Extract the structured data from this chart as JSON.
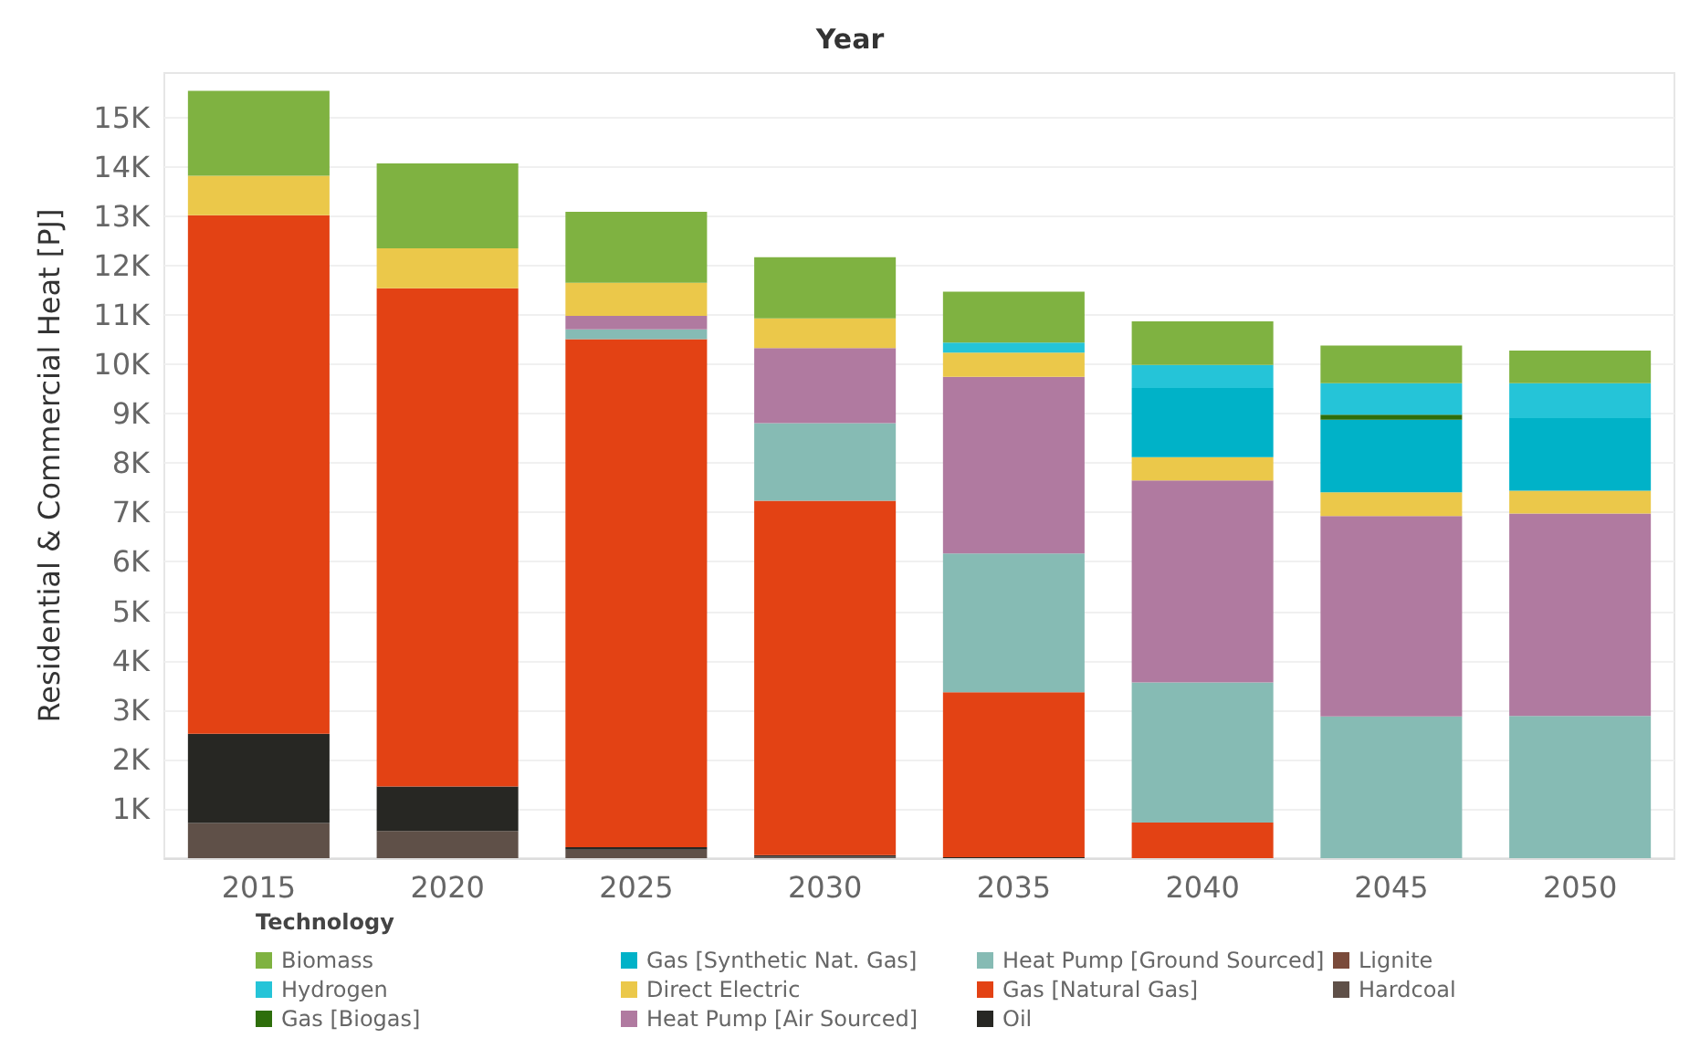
{
  "chart_data": {
    "type": "bar",
    "stacked": true,
    "xlabel": "Year",
    "ylabel": "Residential & Commercial Heat [PJ]",
    "legend_title": "Technology",
    "legend": "bottom",
    "grid": "y",
    "categories": [
      "2015",
      "2020",
      "2025",
      "2030",
      "2035",
      "2040",
      "2045",
      "2050"
    ],
    "ylim": [
      0,
      15900
    ],
    "yticks": [
      {
        "value": 1000,
        "label": "1K"
      },
      {
        "value": 2000,
        "label": "2K"
      },
      {
        "value": 3000,
        "label": "3K"
      },
      {
        "value": 4000,
        "label": "4K"
      },
      {
        "value": 5000,
        "label": "5K"
      },
      {
        "value": 6000,
        "label": "6K"
      },
      {
        "value": 7000,
        "label": "7K"
      },
      {
        "value": 8000,
        "label": "8K"
      },
      {
        "value": 9000,
        "label": "9K"
      },
      {
        "value": 10000,
        "label": "10K"
      },
      {
        "value": 11000,
        "label": "11K"
      },
      {
        "value": 12000,
        "label": "12K"
      },
      {
        "value": 13000,
        "label": "13K"
      },
      {
        "value": 14000,
        "label": "14K"
      },
      {
        "value": 15000,
        "label": "15K"
      }
    ],
    "series": [
      {
        "name": "Hardcoal",
        "color": "#5f5048",
        "values": [
          710,
          550,
          170,
          30,
          0,
          0,
          0,
          0
        ]
      },
      {
        "name": "Lignite",
        "color": "#7a4a3a",
        "values": [
          0,
          0,
          0,
          0,
          0,
          0,
          0,
          0
        ]
      },
      {
        "name": "Oil",
        "color": "#272723",
        "values": [
          1810,
          900,
          50,
          30,
          20,
          0,
          0,
          0
        ]
      },
      {
        "name": "Gas [Natural Gas]",
        "color": "#e34214",
        "values": [
          10500,
          10090,
          10290,
          7180,
          3340,
          720,
          0,
          0
        ]
      },
      {
        "name": "Heat Pump [Ground Sourced]",
        "color": "#86bbb4",
        "values": [
          0,
          0,
          200,
          1570,
          2810,
          2840,
          2870,
          2880
        ]
      },
      {
        "name": "Heat Pump [Air Sourced]",
        "color": "#b07aa0",
        "values": [
          0,
          0,
          270,
          1520,
          3580,
          4090,
          4060,
          4100
        ]
      },
      {
        "name": "Direct Electric",
        "color": "#ebc84a",
        "values": [
          800,
          810,
          670,
          600,
          490,
          470,
          480,
          460
        ]
      },
      {
        "name": "Gas [Synthetic Nat. Gas]",
        "color": "#00b2c8",
        "values": [
          0,
          0,
          0,
          0,
          0,
          1400,
          1470,
          1470
        ]
      },
      {
        "name": "Gas [Biogas]",
        "color": "#2e6e0b",
        "values": [
          0,
          0,
          0,
          0,
          0,
          0,
          100,
          0
        ]
      },
      {
        "name": "Hydrogen",
        "color": "#25c4d8",
        "values": [
          0,
          0,
          0,
          0,
          200,
          470,
          640,
          710
        ]
      },
      {
        "name": "Biomass",
        "color": "#7fb241",
        "values": [
          1720,
          1720,
          1440,
          1240,
          1030,
          880,
          760,
          660
        ]
      }
    ]
  }
}
